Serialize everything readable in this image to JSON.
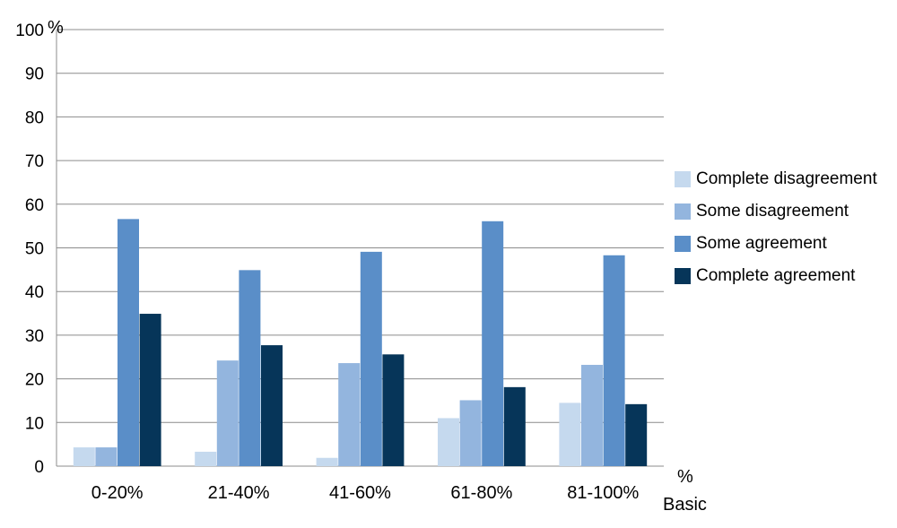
{
  "chart_data": {
    "type": "bar",
    "categories": [
      "0-20%",
      "21-40%",
      "41-60%",
      "61-80%",
      "81-100%"
    ],
    "series": [
      {
        "name": "Complete disagreement",
        "color": "#c5d9ee",
        "values": [
          4.3,
          3.3,
          1.9,
          11.0,
          14.5
        ]
      },
      {
        "name": "Some disagreement",
        "color": "#93b5de",
        "values": [
          4.3,
          24.2,
          23.6,
          15.1,
          23.2
        ]
      },
      {
        "name": "Some agreement",
        "color": "#5a8ec8",
        "values": [
          56.6,
          44.9,
          49.1,
          56.1,
          48.3
        ]
      },
      {
        "name": "Complete agreement",
        "color": "#063559",
        "values": [
          34.9,
          27.7,
          25.6,
          18.1,
          14.2
        ]
      }
    ],
    "ylim": [
      0,
      100
    ],
    "yticks": [
      0,
      10,
      20,
      30,
      40,
      50,
      60,
      70,
      80,
      90,
      100
    ],
    "ylabel": "%",
    "xlabel_line1": "%",
    "xlabel_line2": "Basic",
    "grid": true,
    "legend_position": "right"
  }
}
